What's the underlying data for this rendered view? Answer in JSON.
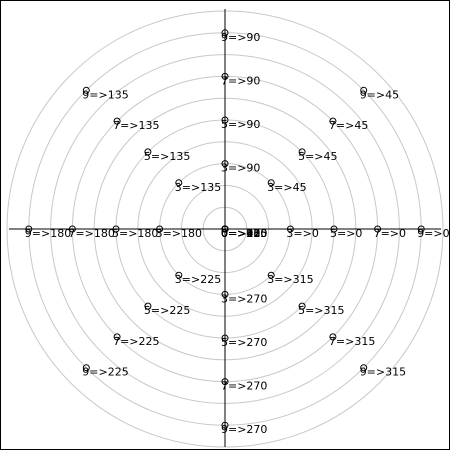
{
  "chart_data": {
    "type": "scatter",
    "coordinate_system": "polar",
    "angle_unit": "degrees",
    "r_max": 10,
    "rings": [
      1,
      2,
      3,
      4,
      5,
      6,
      7,
      8,
      9,
      10
    ],
    "grid": true,
    "axes": [
      "horizontal",
      "vertical"
    ],
    "colors": {
      "grid": "#c8c8c8",
      "axis": "#000000",
      "marker": "#000000",
      "text": "#000000"
    },
    "points": [
      {
        "r": 0,
        "theta": 0,
        "label": "0=>0"
      },
      {
        "r": 0,
        "theta": 45,
        "label": "0=>45"
      },
      {
        "r": 0,
        "theta": 90,
        "label": "0=>90"
      },
      {
        "r": 0,
        "theta": 135,
        "label": "0=>135"
      },
      {
        "r": 0,
        "theta": 180,
        "label": "0=>180"
      },
      {
        "r": 0,
        "theta": 225,
        "label": "0=>225"
      },
      {
        "r": 0,
        "theta": 270,
        "label": "0=>270"
      },
      {
        "r": 0,
        "theta": 315,
        "label": "0=>315"
      },
      {
        "r": 3,
        "theta": 0,
        "label": "3=>0"
      },
      {
        "r": 3,
        "theta": 45,
        "label": "3=>45"
      },
      {
        "r": 3,
        "theta": 90,
        "label": "3=>90"
      },
      {
        "r": 3,
        "theta": 135,
        "label": "3=>135"
      },
      {
        "r": 3,
        "theta": 180,
        "label": "3=>180"
      },
      {
        "r": 3,
        "theta": 225,
        "label": "3=>225"
      },
      {
        "r": 3,
        "theta": 270,
        "label": "3=>270"
      },
      {
        "r": 3,
        "theta": 315,
        "label": "3=>315"
      },
      {
        "r": 5,
        "theta": 0,
        "label": "5=>0"
      },
      {
        "r": 5,
        "theta": 45,
        "label": "5=>45"
      },
      {
        "r": 5,
        "theta": 90,
        "label": "5=>90"
      },
      {
        "r": 5,
        "theta": 135,
        "label": "5=>135"
      },
      {
        "r": 5,
        "theta": 180,
        "label": "5=>180"
      },
      {
        "r": 5,
        "theta": 225,
        "label": "5=>225"
      },
      {
        "r": 5,
        "theta": 270,
        "label": "5=>270"
      },
      {
        "r": 5,
        "theta": 315,
        "label": "5=>315"
      },
      {
        "r": 7,
        "theta": 0,
        "label": "7=>0"
      },
      {
        "r": 7,
        "theta": 45,
        "label": "7=>45"
      },
      {
        "r": 7,
        "theta": 90,
        "label": "7=>90"
      },
      {
        "r": 7,
        "theta": 135,
        "label": "7=>135"
      },
      {
        "r": 7,
        "theta": 180,
        "label": "7=>180"
      },
      {
        "r": 7,
        "theta": 225,
        "label": "7=>225"
      },
      {
        "r": 7,
        "theta": 270,
        "label": "7=>270"
      },
      {
        "r": 7,
        "theta": 315,
        "label": "7=>315"
      },
      {
        "r": 9,
        "theta": 0,
        "label": "9=>0"
      },
      {
        "r": 9,
        "theta": 45,
        "label": "9=>45"
      },
      {
        "r": 9,
        "theta": 90,
        "label": "9=>90"
      },
      {
        "r": 9,
        "theta": 135,
        "label": "9=>135"
      },
      {
        "r": 9,
        "theta": 180,
        "label": "9=>180"
      },
      {
        "r": 9,
        "theta": 225,
        "label": "9=>225"
      },
      {
        "r": 9,
        "theta": 270,
        "label": "9=>270"
      },
      {
        "r": 9,
        "theta": 315,
        "label": "9=>315"
      }
    ]
  }
}
